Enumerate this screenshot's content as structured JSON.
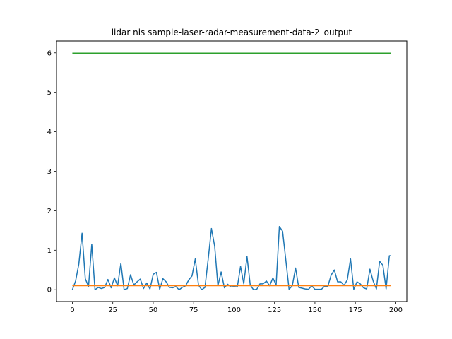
{
  "chart_data": {
    "type": "line",
    "title": "lidar nis sample-laser-radar-measurement-data-2_output",
    "xlabel": "",
    "ylabel": "",
    "xlim": [
      -9.8,
      206.8
    ],
    "ylim": [
      -0.3,
      6.3
    ],
    "xticks": [
      0,
      25,
      50,
      75,
      100,
      125,
      150,
      175,
      200
    ],
    "yticks": [
      0,
      1,
      2,
      3,
      4,
      5,
      6
    ],
    "grid": false,
    "legend": "none",
    "series": [
      {
        "color": "#1f77b4",
        "x": [
          0,
          2,
          4,
          6,
          8,
          10,
          12,
          14,
          16,
          18,
          20,
          22,
          24,
          26,
          28,
          30,
          32,
          34,
          36,
          38,
          40,
          42,
          44,
          46,
          48,
          50,
          52,
          54,
          56,
          58,
          60,
          62,
          64,
          66,
          68,
          70,
          72,
          74,
          76,
          78,
          80,
          82,
          84,
          86,
          88,
          90,
          92,
          94,
          96,
          98,
          100,
          102,
          104,
          106,
          108,
          110,
          112,
          114,
          116,
          118,
          120,
          122,
          124,
          126,
          128,
          130,
          132,
          134,
          136,
          138,
          140,
          142,
          144,
          146,
          148,
          150,
          152,
          154,
          156,
          158,
          160,
          162,
          164,
          166,
          168,
          170,
          172,
          174,
          176,
          178,
          180,
          182,
          184,
          186,
          188,
          190,
          192,
          194,
          196,
          197
        ],
        "y": [
          0.0,
          0.22,
          0.65,
          1.43,
          0.28,
          0.08,
          1.15,
          0.0,
          0.06,
          0.03,
          0.06,
          0.26,
          0.05,
          0.3,
          0.1,
          0.67,
          0.0,
          0.03,
          0.38,
          0.12,
          0.2,
          0.27,
          0.03,
          0.17,
          0.02,
          0.39,
          0.44,
          0.01,
          0.28,
          0.2,
          0.06,
          0.05,
          0.08,
          0.0,
          0.06,
          0.1,
          0.25,
          0.35,
          0.78,
          0.12,
          0.0,
          0.06,
          0.78,
          1.55,
          1.1,
          0.1,
          0.45,
          0.05,
          0.14,
          0.07,
          0.08,
          0.07,
          0.59,
          0.15,
          0.84,
          0.12,
          0.0,
          0.01,
          0.15,
          0.15,
          0.22,
          0.1,
          0.3,
          0.12,
          1.6,
          1.48,
          0.75,
          0.01,
          0.1,
          0.55,
          0.06,
          0.04,
          0.02,
          0.01,
          0.1,
          0.01,
          0.01,
          0.01,
          0.09,
          0.09,
          0.37,
          0.5,
          0.2,
          0.2,
          0.11,
          0.25,
          0.78,
          0.01,
          0.2,
          0.15,
          0.05,
          0.02,
          0.52,
          0.22,
          0.02,
          0.72,
          0.62,
          0.02,
          0.86,
          0.86
        ]
      },
      {
        "color": "#ff7f0e",
        "x": [
          0,
          197
        ],
        "y": [
          0.103,
          0.103
        ]
      },
      {
        "color": "#2ca02c",
        "x": [
          0,
          197
        ],
        "y": [
          5.991,
          5.991
        ]
      }
    ]
  }
}
